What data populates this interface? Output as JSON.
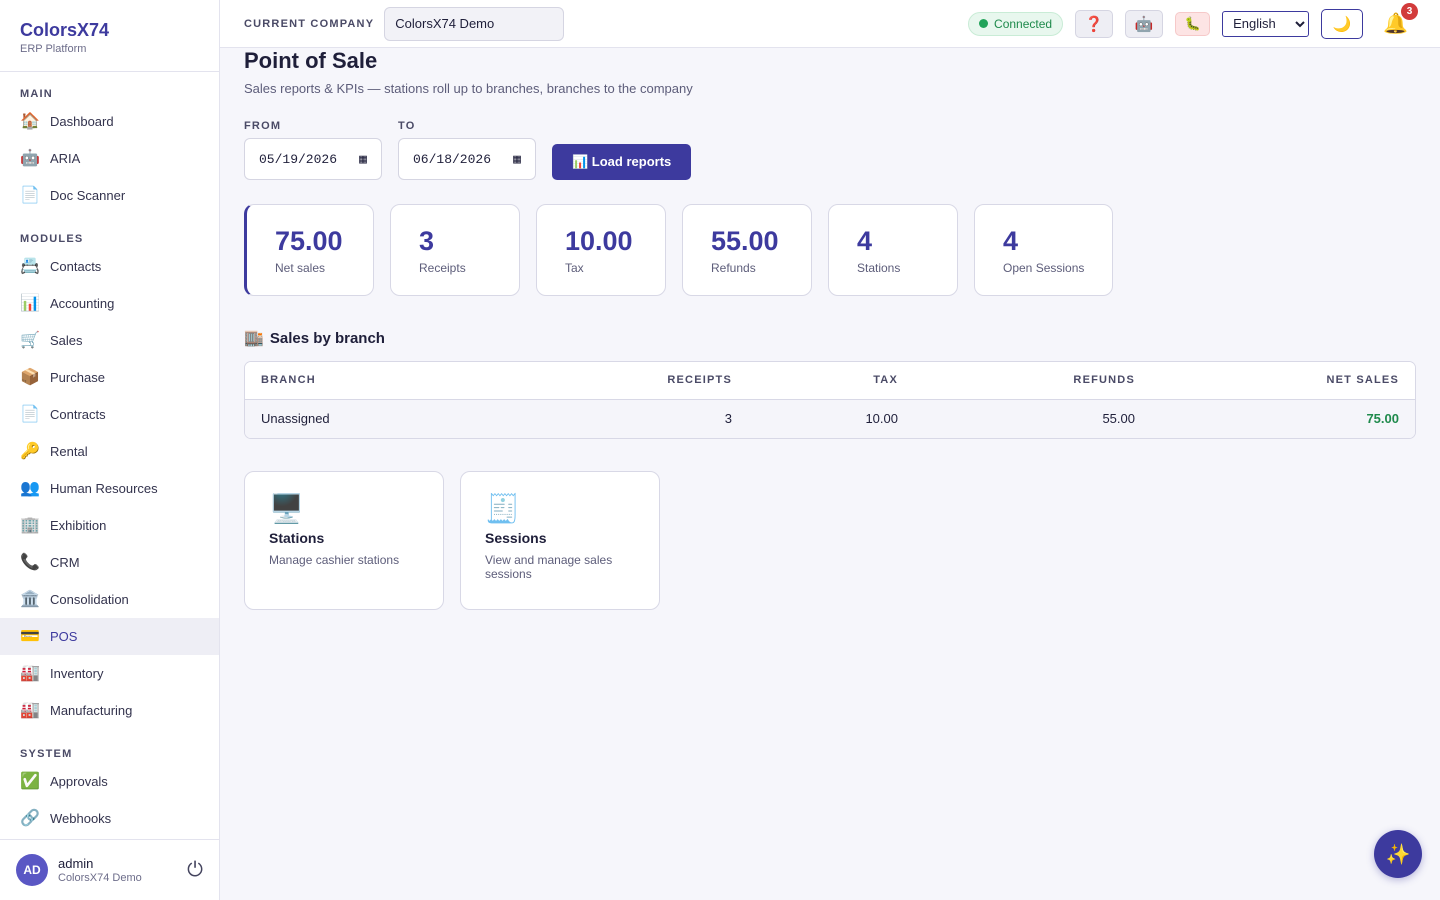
{
  "brand": {
    "name": "ColorsX74",
    "subtitle": "ERP Platform"
  },
  "sidebar": {
    "sections": [
      {
        "title": "MAIN",
        "items": [
          {
            "label": "Dashboard",
            "icon": "🏠"
          },
          {
            "label": "ARIA",
            "icon": "🤖"
          },
          {
            "label": "Doc Scanner",
            "icon": "📄"
          }
        ]
      },
      {
        "title": "MODULES",
        "items": [
          {
            "label": "Contacts",
            "icon": "📇"
          },
          {
            "label": "Accounting",
            "icon": "📊"
          },
          {
            "label": "Sales",
            "icon": "🛒"
          },
          {
            "label": "Purchase",
            "icon": "📦"
          },
          {
            "label": "Contracts",
            "icon": "📄"
          },
          {
            "label": "Rental",
            "icon": "🔑"
          },
          {
            "label": "Human Resources",
            "icon": "👥"
          },
          {
            "label": "Exhibition",
            "icon": "🏢"
          },
          {
            "label": "CRM",
            "icon": "📞"
          },
          {
            "label": "Consolidation",
            "icon": "🏛️"
          },
          {
            "label": "POS",
            "icon": "💳",
            "active": true
          },
          {
            "label": "Inventory",
            "icon": "🏭"
          },
          {
            "label": "Manufacturing",
            "icon": "🏭"
          }
        ]
      },
      {
        "title": "SYSTEM",
        "items": [
          {
            "label": "Approvals",
            "icon": "✅"
          },
          {
            "label": "Webhooks",
            "icon": "🔗"
          }
        ]
      }
    ]
  },
  "user": {
    "initials": "AD",
    "name": "admin",
    "company": "ColorsX74 Demo",
    "power_icon": "⏻"
  },
  "topbar": {
    "company_label": "CURRENT COMPANY",
    "company_value": "ColorsX74 Demo",
    "status": "Connected",
    "help_icon": "❓",
    "robot_icon": "🤖",
    "bug_icon": "🐛",
    "language": "English",
    "theme_icon": "🌙",
    "bell_icon": "🔔",
    "notification_count": "3"
  },
  "page": {
    "title": "Point of Sale",
    "subtitle": "Sales reports & KPIs — stations roll up to branches, branches to the company"
  },
  "filters": {
    "from_label": "FROM",
    "from_value": "05/19/2026",
    "to_label": "TO",
    "to_value": "06/18/2026",
    "load_button": "📊 Load reports"
  },
  "kpis": {
    "net_sales": {
      "value": "75.00",
      "label": "Net sales"
    },
    "receipts": {
      "value": "3",
      "label": "Receipts"
    },
    "tax": {
      "value": "10.00",
      "label": "Tax"
    },
    "refunds": {
      "value": "55.00",
      "label": "Refunds"
    },
    "stations": {
      "value": "4",
      "label": "Stations"
    },
    "open_sessions": {
      "value": "4",
      "label": "Open Sessions"
    }
  },
  "branch_section": {
    "icon": "🏬",
    "title": "Sales by branch",
    "columns": {
      "branch": "BRANCH",
      "receipts": "RECEIPTS",
      "tax": "TAX",
      "refunds": "REFUNDS",
      "net_sales": "NET SALES"
    },
    "rows": [
      {
        "branch": "Unassigned",
        "receipts": "3",
        "tax": "10.00",
        "refunds": "55.00",
        "net_sales": "75.00"
      }
    ]
  },
  "cards": {
    "stations": {
      "icon": "🖥️",
      "title": "Stations",
      "desc": "Manage cashier stations"
    },
    "sessions": {
      "icon": "🧾",
      "title": "Sessions",
      "desc": "View and manage sales sessions"
    }
  },
  "fab_icon": "✨",
  "colors": {
    "accent": "#3d3a9e",
    "positive": "#1f8a4c",
    "badge": "#d23b3b"
  }
}
